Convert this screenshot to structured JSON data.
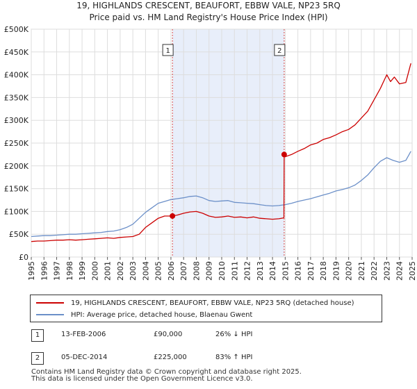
{
  "title": "19, HIGHLANDS CRESCENT, BEAUFORT, EBBW VALE, NP23 5RQ",
  "subtitle": "Price paid vs. HM Land Registry's House Price Index (HPI)",
  "colors": {
    "property": "#cc0000",
    "hpi": "#6b8fc8",
    "band": "#e8eefa",
    "grid": "#dddddd",
    "marker_line": "#cc0000"
  },
  "chart_data": {
    "type": "line",
    "title": "19, HIGHLANDS CRESCENT, BEAUFORT, EBBW VALE, NP23 5RQ",
    "subtitle": "Price paid vs. HM Land Registry's House Price Index (HPI)",
    "xlabel": "",
    "ylabel": "",
    "xlim": [
      1995,
      2025
    ],
    "ylim": [
      0,
      500000
    ],
    "x_ticks": [
      "1995",
      "1996",
      "1997",
      "1998",
      "1999",
      "2000",
      "2001",
      "2002",
      "2003",
      "2004",
      "2005",
      "2006",
      "2007",
      "2008",
      "2009",
      "2010",
      "2011",
      "2012",
      "2013",
      "2014",
      "2015",
      "2016",
      "2017",
      "2018",
      "2019",
      "2020",
      "2021",
      "2022",
      "2023",
      "2024",
      "2025"
    ],
    "y_ticks": [
      {
        "value": 0,
        "label": "£0"
      },
      {
        "value": 50000,
        "label": "£50K"
      },
      {
        "value": 100000,
        "label": "£100K"
      },
      {
        "value": 150000,
        "label": "£150K"
      },
      {
        "value": 200000,
        "label": "£200K"
      },
      {
        "value": 250000,
        "label": "£250K"
      },
      {
        "value": 300000,
        "label": "£300K"
      },
      {
        "value": 350000,
        "label": "£350K"
      },
      {
        "value": 400000,
        "label": "£400K"
      },
      {
        "value": 450000,
        "label": "£450K"
      },
      {
        "value": 500000,
        "label": "£500K"
      }
    ],
    "grid": true,
    "shaded_period": [
      2006.12,
      2014.92
    ],
    "series": [
      {
        "name": "19, HIGHLANDS CRESCENT, BEAUFORT, EBBW VALE, NP23 5RQ (detached house)",
        "color": "#cc0000",
        "x": [
          1995.0,
          1995.5,
          1996.0,
          1996.5,
          1997.0,
          1997.5,
          1998.0,
          1998.5,
          1999.0,
          1999.5,
          2000.0,
          2000.5,
          2001.0,
          2001.5,
          2002.0,
          2002.5,
          2003.0,
          2003.5,
          2004.0,
          2004.5,
          2005.0,
          2005.5,
          2006.12,
          2006.5,
          2007.0,
          2007.5,
          2008.0,
          2008.5,
          2009.0,
          2009.5,
          2010.0,
          2010.5,
          2011.0,
          2011.5,
          2012.0,
          2012.5,
          2013.0,
          2013.5,
          2014.0,
          2014.5,
          2014.9,
          2014.92,
          2015.0,
          2015.5,
          2016.0,
          2016.5,
          2017.0,
          2017.5,
          2018.0,
          2018.5,
          2019.0,
          2019.5,
          2020.0,
          2020.5,
          2021.0,
          2021.5,
          2022.0,
          2022.5,
          2023.0,
          2023.3,
          2023.6,
          2024.0,
          2024.5,
          2024.9
        ],
        "y": [
          34000,
          35000,
          35000,
          36000,
          37000,
          37000,
          38000,
          37000,
          38000,
          39000,
          40000,
          41000,
          42000,
          41000,
          43000,
          44000,
          45000,
          50000,
          65000,
          75000,
          85000,
          90000,
          90000,
          92000,
          96000,
          99000,
          100000,
          96000,
          90000,
          87000,
          88000,
          90000,
          87000,
          88000,
          86000,
          88000,
          85000,
          84000,
          83000,
          84000,
          86000,
          225000,
          220000,
          225000,
          232000,
          238000,
          246000,
          250000,
          258000,
          262000,
          268000,
          275000,
          280000,
          290000,
          305000,
          320000,
          345000,
          370000,
          400000,
          385000,
          395000,
          380000,
          383000,
          425000
        ]
      },
      {
        "name": "HPI: Average price, detached house, Blaenau Gwent",
        "color": "#6b8fc8",
        "x": [
          1995.0,
          1995.5,
          1996.0,
          1996.5,
          1997.0,
          1997.5,
          1998.0,
          1998.5,
          1999.0,
          1999.5,
          2000.0,
          2000.5,
          2001.0,
          2001.5,
          2002.0,
          2002.5,
          2003.0,
          2003.5,
          2004.0,
          2004.5,
          2005.0,
          2005.5,
          2006.0,
          2006.5,
          2007.0,
          2007.5,
          2008.0,
          2008.5,
          2009.0,
          2009.5,
          2010.0,
          2010.5,
          2011.0,
          2011.5,
          2012.0,
          2012.5,
          2013.0,
          2013.5,
          2014.0,
          2014.5,
          2015.0,
          2015.5,
          2016.0,
          2016.5,
          2017.0,
          2017.5,
          2018.0,
          2018.5,
          2019.0,
          2019.5,
          2020.0,
          2020.5,
          2021.0,
          2021.5,
          2022.0,
          2022.5,
          2023.0,
          2023.5,
          2024.0,
          2024.5,
          2024.9
        ],
        "y": [
          45000,
          46000,
          47000,
          47000,
          48000,
          49000,
          50000,
          50000,
          51000,
          52000,
          53000,
          54000,
          56000,
          57000,
          60000,
          65000,
          72000,
          85000,
          98000,
          108000,
          118000,
          122000,
          126000,
          128000,
          130000,
          133000,
          134000,
          130000,
          124000,
          122000,
          123000,
          124000,
          120000,
          119000,
          118000,
          117000,
          115000,
          113000,
          112000,
          113000,
          115000,
          118000,
          122000,
          125000,
          128000,
          132000,
          136000,
          140000,
          145000,
          148000,
          152000,
          158000,
          168000,
          180000,
          196000,
          210000,
          218000,
          212000,
          208000,
          212000,
          232000
        ]
      }
    ],
    "sale_markers": [
      {
        "label": "1",
        "x": 2006.12,
        "y": 90000
      },
      {
        "label": "2",
        "x": 2014.92,
        "y": 225000
      }
    ]
  },
  "legend": {
    "property": "19, HIGHLANDS CRESCENT, BEAUFORT, EBBW VALE, NP23 5RQ (detached house)",
    "hpi": "HPI: Average price, detached house, Blaenau Gwent"
  },
  "sales": [
    {
      "num": "1",
      "date": "13-FEB-2006",
      "price": "£90,000",
      "hpi": "26% ↓ HPI"
    },
    {
      "num": "2",
      "date": "05-DEC-2014",
      "price": "£225,000",
      "hpi": "83% ↑ HPI"
    }
  ],
  "footer": {
    "line1": "Contains HM Land Registry data © Crown copyright and database right 2025.",
    "line2": "This data is licensed under the Open Government Licence v3.0."
  }
}
